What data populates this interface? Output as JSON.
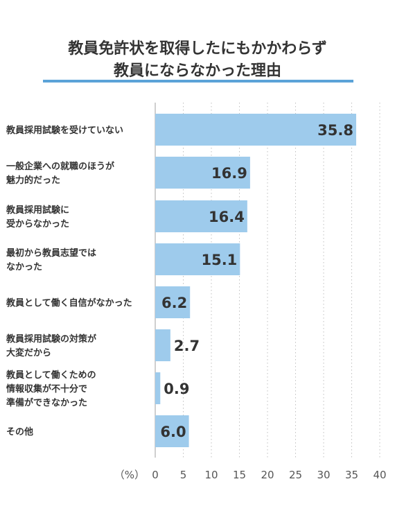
{
  "chart_data": {
    "type": "bar",
    "orientation": "horizontal",
    "title": "教員免許状を取得したにもかかわらず\n教員にならなかった理由",
    "categories": [
      "教員採用試験を受けていない",
      "一般企業への就職のほうが\n魅力的だった",
      "教員採用試験に\n受からなかった",
      "最初から教員志望では\nなかった",
      "教員として働く自信がなかった",
      "教員採用試験の対策が\n大変だから",
      "教員として働くための\n情報収集が不十分で\n準備ができなかった",
      "その他"
    ],
    "values": [
      35.8,
      16.9,
      16.4,
      15.1,
      6.2,
      2.7,
      0.9,
      6.0
    ],
    "value_labels": [
      "35.8",
      "16.9",
      "16.4",
      "15.1",
      "6.2",
      "2.7",
      "0.9",
      "6.0"
    ],
    "xlim": [
      0,
      40
    ],
    "x_ticks": [
      "0",
      "5",
      "10",
      "15",
      "20",
      "25",
      "30",
      "35",
      "40"
    ],
    "unit_label": "（%）",
    "grid": "vertical dotted",
    "bar_color": "#9ecbec",
    "title_rule_color": "#5ba3d8"
  }
}
